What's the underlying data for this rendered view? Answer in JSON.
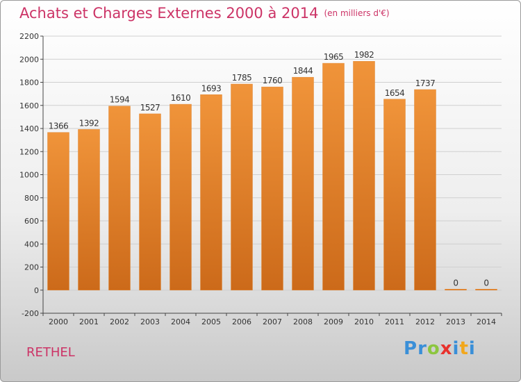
{
  "chart_data": {
    "type": "bar",
    "title": "Achats et Charges Externes 2000 à 2014",
    "subtitle": "(en milliers d'€)",
    "xlabel": "",
    "ylabel": "",
    "categories": [
      "2000",
      "2001",
      "2002",
      "2003",
      "2004",
      "2005",
      "2006",
      "2007",
      "2008",
      "2009",
      "2010",
      "2011",
      "2012",
      "2013",
      "2014"
    ],
    "values": [
      1366,
      1392,
      1594,
      1527,
      1610,
      1693,
      1785,
      1760,
      1844,
      1965,
      1982,
      1654,
      1737,
      0,
      0
    ],
    "ylim": [
      -200,
      2200
    ],
    "yticks": [
      -200,
      0,
      200,
      400,
      600,
      800,
      1000,
      1200,
      1400,
      1600,
      1800,
      2000,
      2200
    ],
    "grid": "horizontal",
    "legend": "none",
    "bar_color": "#f0943a",
    "bar_color_dark": "#cc6a1a"
  },
  "location": "RETHEL",
  "brand": {
    "name": "Proxiti",
    "letters": [
      {
        "ch": "P",
        "color": "#3a8fd8"
      },
      {
        "ch": "r",
        "color": "#3a8fd8"
      },
      {
        "ch": "o",
        "color": "#8cc63f"
      },
      {
        "ch": "x",
        "color": "#e8322d"
      },
      {
        "ch": "i",
        "color": "#3a8fd8"
      },
      {
        "ch": "t",
        "color": "#f2a71b"
      },
      {
        "ch": "i",
        "color": "#3a8fd8"
      }
    ]
  }
}
